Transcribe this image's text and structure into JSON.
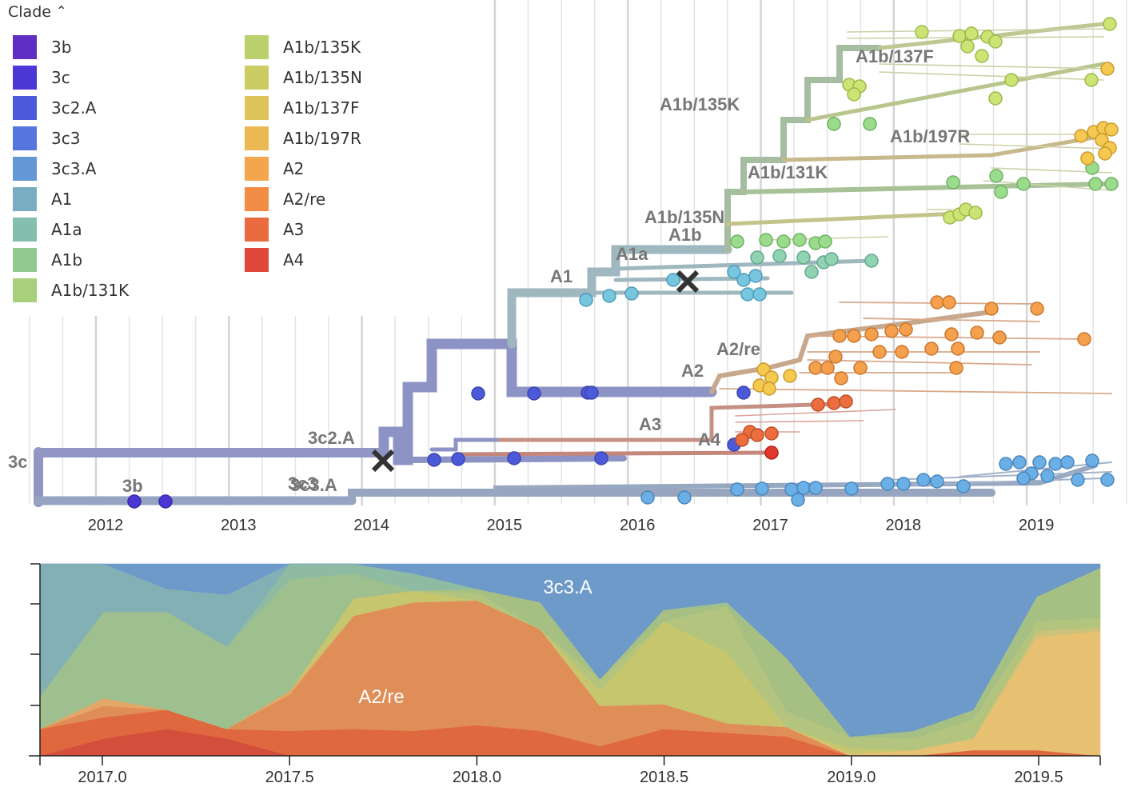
{
  "legend": {
    "title": "Clade",
    "toggle_icon": "chevron-up-icon",
    "items": [
      {
        "label": "3b",
        "color": "#5e2fc2"
      },
      {
        "label": "3c",
        "color": "#4b36d6"
      },
      {
        "label": "3c2.A",
        "color": "#4c5ad9"
      },
      {
        "label": "3c3",
        "color": "#5577dd"
      },
      {
        "label": "3c3.A",
        "color": "#6497d6"
      },
      {
        "label": "A1",
        "color": "#79adc1"
      },
      {
        "label": "A1a",
        "color": "#84bfae"
      },
      {
        "label": "A1b",
        "color": "#93c88f"
      },
      {
        "label": "A1b/131K",
        "color": "#a8cf7c"
      },
      {
        "label": "A1b/135K",
        "color": "#bad06d"
      },
      {
        "label": "A1b/135N",
        "color": "#cbcd62"
      },
      {
        "label": "A1b/137F",
        "color": "#dec45b"
      },
      {
        "label": "A1b/197R",
        "color": "#ecb853"
      },
      {
        "label": "A2",
        "color": "#f3a64c"
      },
      {
        "label": "A2/re",
        "color": "#f08c46"
      },
      {
        "label": "A3",
        "color": "#ea6b40"
      },
      {
        "label": "A4",
        "color": "#e1463a"
      }
    ]
  },
  "tree": {
    "x_ticks": [
      "2012",
      "2013",
      "2014",
      "2015",
      "2016",
      "2017",
      "2018",
      "2019"
    ],
    "branch_labels": [
      "3c",
      "3b",
      "3c3",
      "3c3.A",
      "3c2.A",
      "A1",
      "A1a",
      "A1b",
      "A1b/135N",
      "A1b/131K",
      "A1b/135K",
      "A1b/137F",
      "A1b/197R",
      "A2",
      "A2/re",
      "A3",
      "A4"
    ],
    "markers": [
      "cross-icon",
      "cross-icon"
    ]
  },
  "chart_data": {
    "type": "area",
    "title": "",
    "xlabel": "",
    "ylabel": "",
    "x": [
      2016.83,
      2017.0,
      2017.17,
      2017.33,
      2017.5,
      2017.67,
      2017.83,
      2018.0,
      2018.17,
      2018.33,
      2018.5,
      2018.67,
      2018.83,
      2019.0,
      2019.17,
      2019.33,
      2019.5,
      2019.67
    ],
    "xlim": [
      2016.83,
      2019.67
    ],
    "ylim": [
      0,
      1
    ],
    "x_tick_labels": [
      "2017.0",
      "2017.5",
      "2018.0",
      "2018.5",
      "2019.0",
      "2019.5"
    ],
    "annotations": [
      "3c3.A",
      "A2/re"
    ],
    "series": [
      {
        "name": "A4",
        "color": "#d44e3c",
        "values": [
          0.0,
          0.09,
          0.14,
          0.09,
          0.0,
          0.0,
          0.0,
          0.0,
          0.0,
          0.0,
          0.0,
          0.0,
          0.0,
          0.0,
          0.0,
          0.0,
          0.0,
          0.0
        ]
      },
      {
        "name": "A3",
        "color": "#e0683f",
        "values": [
          0.14,
          0.11,
          0.1,
          0.05,
          0.13,
          0.14,
          0.13,
          0.16,
          0.13,
          0.05,
          0.14,
          0.12,
          0.1,
          0.0,
          0.0,
          0.03,
          0.03,
          0.0
        ]
      },
      {
        "name": "A2/re",
        "color": "#e08e57",
        "values": [
          0.0,
          0.06,
          0.0,
          0.0,
          0.19,
          0.59,
          0.67,
          0.65,
          0.53,
          0.21,
          0.13,
          0.05,
          0.05,
          0.0,
          0.0,
          0.0,
          0.0,
          0.0
        ]
      },
      {
        "name": "A2",
        "color": "#e3a768",
        "values": [
          0.0,
          0.04,
          0.0,
          0.0,
          0.02,
          0.0,
          0.0,
          0.0,
          0.0,
          0.0,
          0.0,
          0.0,
          0.0,
          0.0,
          0.0,
          0.0,
          0.0,
          0.0
        ]
      },
      {
        "name": "A1b/197R",
        "color": "#e8c071",
        "values": [
          0.0,
          0.0,
          0.0,
          0.0,
          0.0,
          0.0,
          0.0,
          0.0,
          0.0,
          0.0,
          0.0,
          0.0,
          0.0,
          0.01,
          0.03,
          0.06,
          0.59,
          0.65
        ]
      },
      {
        "name": "A1b/137F",
        "color": "#ccc37a",
        "values": [
          0.0,
          0.0,
          0.0,
          0.0,
          0.0,
          0.0,
          0.0,
          0.0,
          0.0,
          0.0,
          0.0,
          0.0,
          0.0,
          0.0,
          0.0,
          0.0,
          0.03,
          0.02
        ]
      },
      {
        "name": "A1b/135N",
        "color": "#c6c66f",
        "values": [
          0.0,
          0.0,
          0.0,
          0.0,
          0.0,
          0.09,
          0.06,
          0.0,
          0.0,
          0.08,
          0.43,
          0.37,
          0.0,
          0.03,
          0.0,
          0.0,
          0.0,
          0.0
        ]
      },
      {
        "name": "A1b/135K",
        "color": "#b3c47e",
        "values": [
          0.0,
          0.0,
          0.0,
          0.0,
          0.0,
          0.0,
          0.0,
          0.04,
          0.0,
          0.06,
          0.0,
          0.24,
          0.08,
          0.06,
          0.06,
          0.1,
          0.05,
          0.05
        ]
      },
      {
        "name": "A1b/131K",
        "color": "#a6c083",
        "values": [
          0.0,
          0.0,
          0.0,
          0.0,
          0.0,
          0.0,
          0.0,
          0.02,
          0.14,
          0.0,
          0.06,
          0.0,
          0.28,
          0.0,
          0.04,
          0.05,
          0.13,
          0.26
        ]
      },
      {
        "name": "A1b",
        "color": "#9ebf8e",
        "values": [
          0.17,
          0.45,
          0.51,
          0.43,
          0.58,
          0.13,
          0.0,
          0.0,
          0.0,
          0.0,
          0.0,
          0.02,
          0.0,
          0.0,
          0.0,
          0.0,
          0.0,
          0.0
        ]
      },
      {
        "name": "A1a",
        "color": "#8fbba3",
        "values": [
          0.0,
          0.0,
          0.0,
          0.0,
          0.08,
          0.05,
          0.09,
          0.0,
          0.0,
          0.0,
          0.0,
          0.0,
          0.0,
          0.0,
          0.0,
          0.0,
          0.0,
          0.0
        ]
      },
      {
        "name": "A1",
        "color": "#83b0b5",
        "values": [
          0.69,
          0.25,
          0.12,
          0.27,
          0.0,
          0.0,
          0.0,
          0.0,
          0.0,
          0.0,
          0.0,
          0.0,
          0.0,
          0.0,
          0.0,
          0.0,
          0.0,
          0.0
        ]
      },
      {
        "name": "3c3.A",
        "color": "#6d9ac9",
        "values": [
          0.0,
          0.0,
          0.23,
          0.16,
          0.0,
          0.0,
          0.05,
          0.13,
          0.2,
          0.6,
          0.24,
          0.22,
          0.49,
          0.9,
          0.87,
          0.76,
          0.17,
          0.02
        ]
      }
    ]
  }
}
